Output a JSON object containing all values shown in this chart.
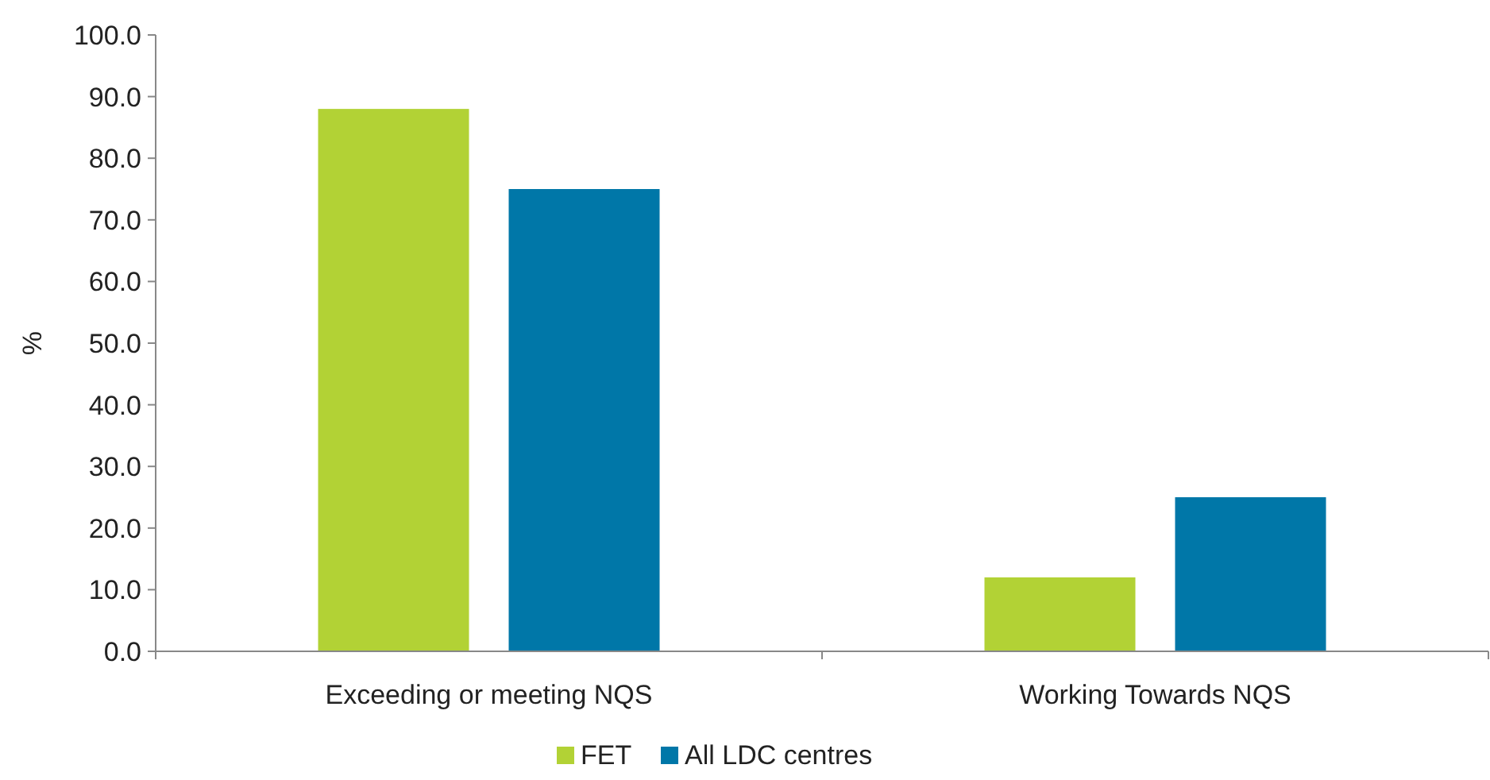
{
  "chart_data": {
    "type": "bar",
    "ylabel": "%",
    "categories": [
      "Exceeding or meeting NQS",
      "Working Towards NQS"
    ],
    "series": [
      {
        "name": "FET",
        "color": "#b2d235",
        "values": [
          88,
          12
        ]
      },
      {
        "name": "All LDC centres",
        "color": "#0077a8",
        "values": [
          75,
          25
        ]
      }
    ],
    "ylim": [
      0,
      100
    ],
    "yticks": [
      {
        "value": 0,
        "label": "0.0"
      },
      {
        "value": 10,
        "label": "10.0"
      },
      {
        "value": 20,
        "label": "20.0"
      },
      {
        "value": 30,
        "label": "30.0"
      },
      {
        "value": 40,
        "label": "40.0"
      },
      {
        "value": 50,
        "label": "50.0"
      },
      {
        "value": 60,
        "label": "60.0"
      },
      {
        "value": 70,
        "label": "70.0"
      },
      {
        "value": 80,
        "label": "80.0"
      },
      {
        "value": 90,
        "label": "90.0"
      },
      {
        "value": 100,
        "label": "100.0"
      }
    ],
    "grid": false,
    "legend": "bottom"
  }
}
